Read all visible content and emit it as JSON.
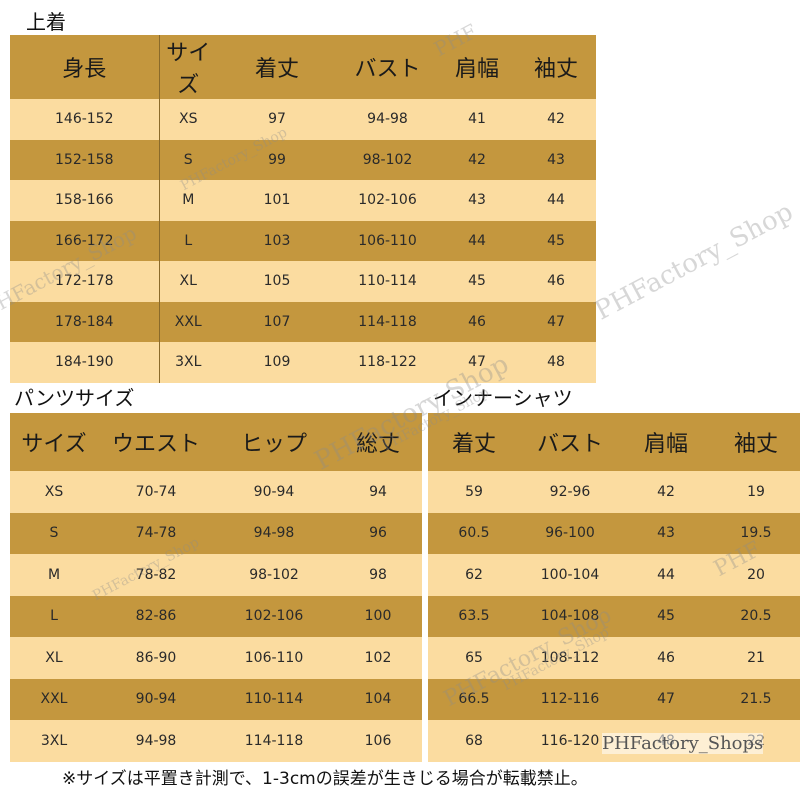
{
  "top": {
    "title": "上着",
    "headers": [
      "身長",
      "サイズ",
      "着丈",
      "バスト",
      "肩幅",
      "袖丈"
    ],
    "rows": [
      [
        "146-152",
        "XS",
        "97",
        "94-98",
        "41",
        "42"
      ],
      [
        "152-158",
        "S",
        "99",
        "98-102",
        "42",
        "43"
      ],
      [
        "158-166",
        "M",
        "101",
        "102-106",
        "43",
        "44"
      ],
      [
        "166-172",
        "L",
        "103",
        "106-110",
        "44",
        "45"
      ],
      [
        "172-178",
        "XL",
        "105",
        "110-114",
        "45",
        "46"
      ],
      [
        "178-184",
        "XXL",
        "107",
        "114-118",
        "46",
        "47"
      ],
      [
        "184-190",
        "3XL",
        "109",
        "118-122",
        "47",
        "48"
      ]
    ]
  },
  "pants": {
    "title": "パンツサイズ",
    "headers": [
      "サイズ",
      "ウエスト",
      "ヒップ",
      "総丈"
    ],
    "rows": [
      [
        "XS",
        "70-74",
        "90-94",
        "94"
      ],
      [
        "S",
        "74-78",
        "94-98",
        "96"
      ],
      [
        "M",
        "78-82",
        "98-102",
        "98"
      ],
      [
        "L",
        "82-86",
        "102-106",
        "100"
      ],
      [
        "XL",
        "86-90",
        "106-110",
        "102"
      ],
      [
        "XXL",
        "90-94",
        "110-114",
        "104"
      ],
      [
        "3XL",
        "94-98",
        "114-118",
        "106"
      ]
    ]
  },
  "inner": {
    "title": "インナーシャツ",
    "headers": [
      "着丈",
      "バスト",
      "肩幅",
      "袖丈"
    ],
    "rows": [
      [
        "59",
        "92-96",
        "42",
        "19"
      ],
      [
        "60.5",
        "96-100",
        "43",
        "19.5"
      ],
      [
        "62",
        "100-104",
        "44",
        "20"
      ],
      [
        "63.5",
        "104-108",
        "45",
        "20.5"
      ],
      [
        "65",
        "108-112",
        "46",
        "21"
      ],
      [
        "66.5",
        "112-116",
        "47",
        "21.5"
      ],
      [
        "68",
        "116-120",
        "48",
        "22"
      ]
    ]
  },
  "footnote": "※サイズは平置き計測で、1-3cmの誤差が生きじる場合が転載禁止。",
  "watermark": {
    "shop_overlay": "PHFactory_Shops",
    "marks": [
      "PHFactory_Shop",
      "PHF",
      "PHFactory_Shop",
      "PHFactory_Shop",
      "PHFactory Shop",
      "PHFactory_Shop",
      "PHFactory_Shop",
      "PHFactory_Shop",
      "PHFactory_Shop",
      "PHF"
    ]
  },
  "colors": {
    "header_dark": "#c4973e",
    "row_light": "#fbdca0",
    "row_dark": "#c4973e"
  }
}
